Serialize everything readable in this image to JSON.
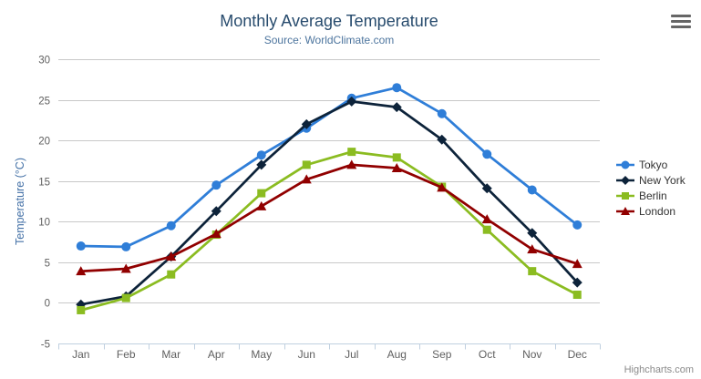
{
  "chart_data": {
    "type": "line",
    "title": "Monthly Average Temperature",
    "subtitle": "Source: WorldClimate.com",
    "categories": [
      "Jan",
      "Feb",
      "Mar",
      "Apr",
      "May",
      "Jun",
      "Jul",
      "Aug",
      "Sep",
      "Oct",
      "Nov",
      "Dec"
    ],
    "xlabel": "",
    "ylabel": "Temperature (°C)",
    "ylim": [
      -5,
      30
    ],
    "ytick_step": 5,
    "grid": true,
    "legend_position": "right",
    "series": [
      {
        "name": "Tokyo",
        "color": "#2f7ed8",
        "marker": "circle",
        "values": [
          7.0,
          6.9,
          9.5,
          14.5,
          18.2,
          21.5,
          25.2,
          26.5,
          23.3,
          18.3,
          13.9,
          9.6
        ]
      },
      {
        "name": "New York",
        "color": "#0d233a",
        "marker": "diamond",
        "values": [
          -0.2,
          0.8,
          5.7,
          11.3,
          17.0,
          22.0,
          24.8,
          24.1,
          20.1,
          14.1,
          8.6,
          2.5
        ]
      },
      {
        "name": "Berlin",
        "color": "#8bbc21",
        "marker": "square",
        "values": [
          -0.9,
          0.6,
          3.5,
          8.4,
          13.5,
          17.0,
          18.6,
          17.9,
          14.3,
          9.0,
          3.9,
          1.0
        ]
      },
      {
        "name": "London",
        "color": "#910000",
        "marker": "triangle",
        "values": [
          3.9,
          4.2,
          5.7,
          8.5,
          11.9,
          15.2,
          17.0,
          16.6,
          14.2,
          10.3,
          6.6,
          4.8
        ]
      }
    ],
    "credits": "Highcharts.com"
  },
  "chrome_colors": {
    "title": "#274b6d",
    "subtitle": "#4d759e",
    "axis_title": "#4572a7",
    "axis_labels": "#606060",
    "gridline": "#c8c8c8",
    "axis_line": "#c0d0e0",
    "legend_text": "#333333"
  }
}
